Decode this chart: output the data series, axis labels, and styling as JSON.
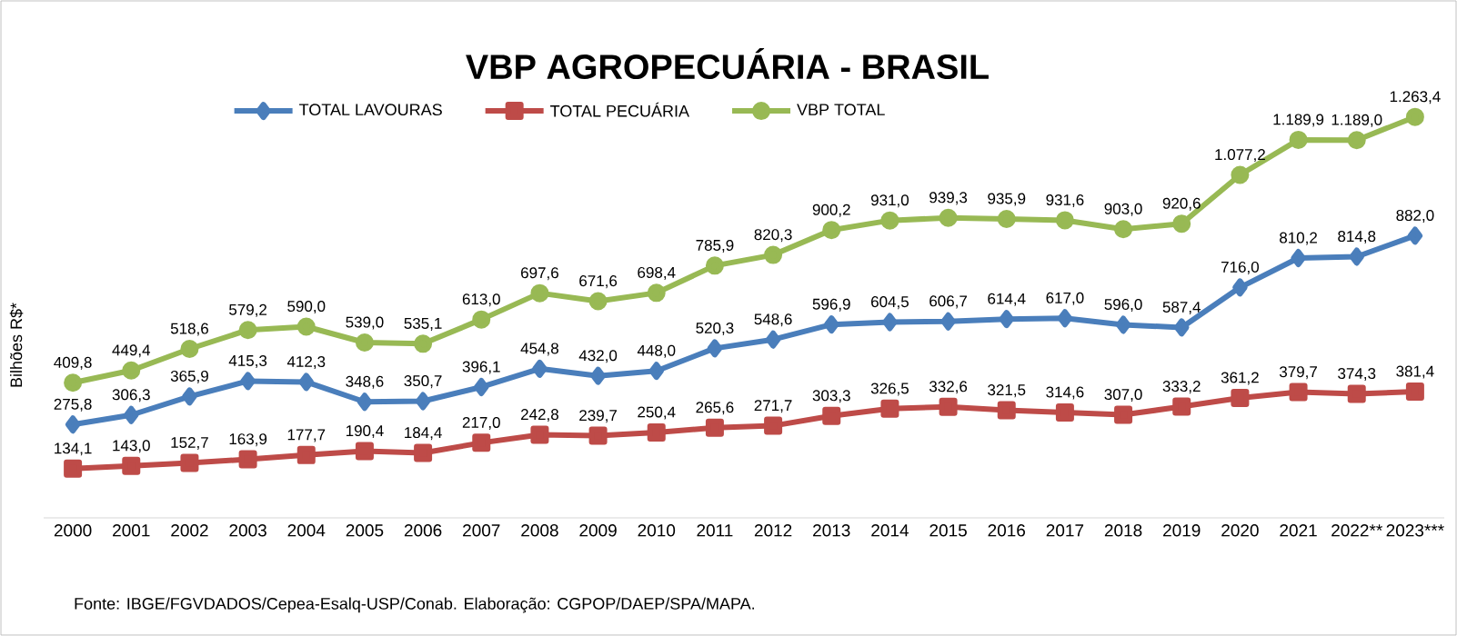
{
  "chart_data": {
    "type": "line",
    "title": "VBP AGROPECUÁRIA - BRASIL",
    "ylabel": "Bilhões R$*",
    "annotations": [
      "Fonte: IBGE/FGVDADOS/Cepea-Esalq-USP/Conab. Elaboração: CGPOP/DAEP/SPA/MAPA."
    ],
    "categories": [
      "2000",
      "2001",
      "2002",
      "2003",
      "2004",
      "2005",
      "2006",
      "2007",
      "2008",
      "2009",
      "2010",
      "2011",
      "2012",
      "2013",
      "2014",
      "2015",
      "2016",
      "2017",
      "2018",
      "2019",
      "2020",
      "2021",
      "2022**",
      "2023***"
    ],
    "series": [
      {
        "name": "TOTAL LAVOURAS",
        "color": "#4a7ebb",
        "marker": "diamond",
        "values": [
          275.8,
          306.3,
          365.9,
          415.3,
          412.3,
          348.6,
          350.7,
          396.1,
          454.8,
          432.0,
          448.0,
          520.3,
          548.6,
          596.9,
          604.5,
          606.7,
          614.4,
          617.0,
          596.0,
          587.4,
          716.0,
          810.2,
          814.8,
          882.0
        ],
        "value_labels": [
          "275,8",
          "306,3",
          "365,9",
          "415,3",
          "412,3",
          "348,6",
          "350,7",
          "396,1",
          "454,8",
          "432,0",
          "448,0",
          "520,3",
          "548,6",
          "596,9",
          "604,5",
          "606,7",
          "614,4",
          "617,0",
          "596,0",
          "587,4",
          "716,0",
          "810,2",
          "814,8",
          "882,0"
        ]
      },
      {
        "name": "TOTAL PECUÁRIA",
        "color": "#be4b48",
        "marker": "square",
        "values": [
          134.1,
          143.0,
          152.7,
          163.9,
          177.7,
          190.4,
          184.4,
          217.0,
          242.8,
          239.7,
          250.4,
          265.6,
          271.7,
          303.3,
          326.5,
          332.6,
          321.5,
          314.6,
          307.0,
          333.2,
          361.2,
          379.7,
          374.3,
          381.4
        ],
        "value_labels": [
          "134,1",
          "143,0",
          "152,7",
          "163,9",
          "177,7",
          "190,4",
          "184,4",
          "217,0",
          "242,8",
          "239,7",
          "250,4",
          "265,6",
          "271,7",
          "303,3",
          "326,5",
          "332,6",
          "321,5",
          "314,6",
          "307,0",
          "333,2",
          "361,2",
          "379,7",
          "374,3",
          "381,4"
        ]
      },
      {
        "name": "VBP TOTAL",
        "color": "#98b954",
        "marker": "circle",
        "values": [
          409.8,
          449.4,
          518.6,
          579.2,
          590.0,
          539.0,
          535.1,
          613.0,
          697.6,
          671.6,
          698.4,
          785.9,
          820.3,
          900.2,
          931.0,
          939.3,
          935.9,
          931.6,
          903.0,
          920.6,
          1077.2,
          1189.9,
          1189.0,
          1263.4
        ],
        "value_labels": [
          "409,8",
          "449,4",
          "518,6",
          "579,2",
          "590,0",
          "539,0",
          "535,1",
          "613,0",
          "697,6",
          "671,6",
          "698,4",
          "785,9",
          "820,3",
          "900,2",
          "931,0",
          "939,3",
          "935,9",
          "931,6",
          "903,0",
          "920,6",
          "1.077,2",
          "1.189,9",
          "1.189,0",
          "1.263,4"
        ]
      }
    ],
    "legend": "top",
    "grid": false,
    "tick_labels": "x",
    "line_style": "solid"
  }
}
